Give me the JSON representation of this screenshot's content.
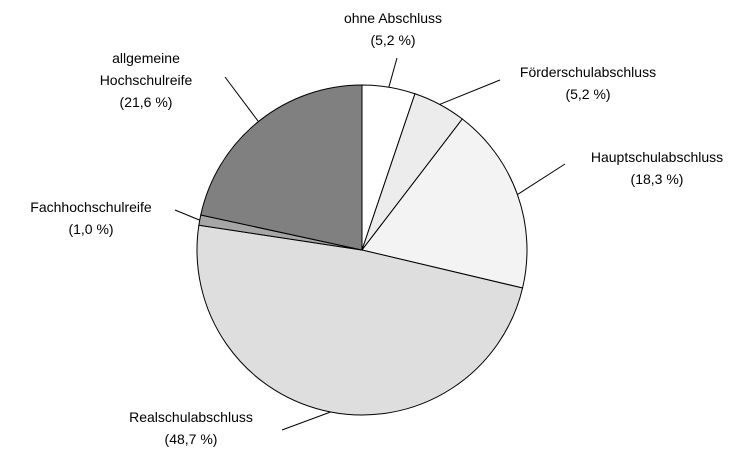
{
  "chart_data": {
    "type": "pie",
    "categories": [
      "ohne Abschluss",
      "Förderschulabschluss",
      "Hauptschulabschluss",
      "Realschulabschluss",
      "Fachhochschulreife",
      "allgemeine Hochschulreife"
    ],
    "values": [
      5.2,
      5.2,
      18.3,
      48.7,
      1.0,
      21.6
    ],
    "value_labels": [
      "(5,2 %)",
      "(5,2 %)",
      "(18,3 %)",
      "(48,7 %)",
      "(1,0 %)",
      "(21,6 %)"
    ],
    "colors": [
      "#ffffff",
      "#ececec",
      "#f3f3f3",
      "#dedede",
      "#a6a6a6",
      "#808080"
    ]
  }
}
